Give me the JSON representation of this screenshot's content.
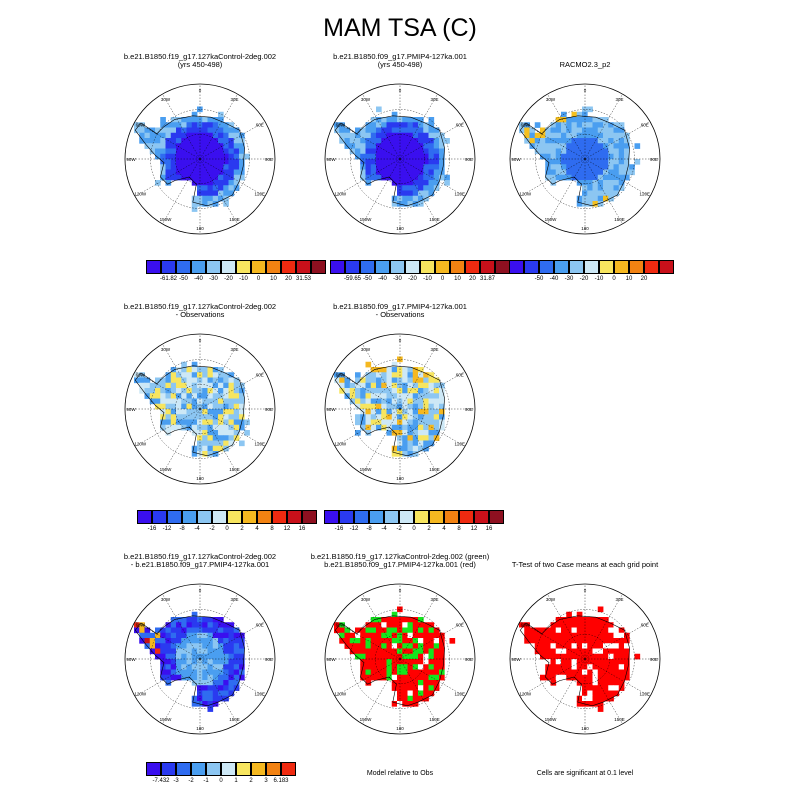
{
  "title": "MAM TSA (C)",
  "panels": [
    {
      "id": "p1",
      "title": [
        "b.e21.B1850.f19_g17.127kaControl-2deg.002",
        "(yrs 450-498)"
      ],
      "fill": "cold"
    },
    {
      "id": "p2",
      "title": [
        "b.e21.B1850.f09_g17.PMIP4-127ka.001",
        "(yrs 450-498)"
      ],
      "fill": "cold"
    },
    {
      "id": "p3",
      "title": [
        "RACMO2.3_p2"
      ],
      "fill": "cold_obs"
    },
    {
      "id": "p4",
      "title": [
        "b.e21.B1850.f19_g17.127kaControl-2deg.002",
        "- Observations"
      ],
      "fill": "bias"
    },
    {
      "id": "p5",
      "title": [
        "b.e21.B1850.f09_g17.PMIP4-127ka.001",
        "- Observations"
      ],
      "fill": "bias2"
    },
    {
      "id": "p6",
      "title": [
        "b.e21.B1850.f19_g17.127kaControl-2deg.002",
        "- b.e21.B1850.f09_g17.PMIP4-127ka.001"
      ],
      "fill": "diff"
    },
    {
      "id": "p7",
      "title": [
        "b.e21.B1850.f19_g17.127kaControl-2deg.002 (green)",
        "b.e21.B1850.f09_g17.PMIP4-127ka.001 (red)"
      ],
      "fill": "redgreen"
    },
    {
      "id": "p8",
      "title": [
        "T-Test of two Case means at each grid point"
      ],
      "fill": "redwhite"
    }
  ],
  "map_labels": {
    "top": "0",
    "left": "90W",
    "right": "90E",
    "bottom": "180",
    "tl": "30W",
    "tr": "30E",
    "ml": "60W",
    "mr": "60E",
    "ll": "120W",
    "lr": "120E",
    "bl": "150W",
    "br": "150E"
  },
  "colorbars": {
    "cb1": {
      "colors": [
        "#3a0fef",
        "#2a3af0",
        "#2f6cf0",
        "#4a9ef0",
        "#8cc6f2",
        "#cde8f6",
        "#f7e55f",
        "#f5b820",
        "#f28212",
        "#ef2a10",
        "#c8101a",
        "#8e1020"
      ],
      "labels": [
        "-61.82",
        "-50",
        "-40",
        "-30",
        "-20",
        "-10",
        "0",
        "10",
        "20",
        "31.53"
      ]
    },
    "cb2": {
      "colors": [
        "#3a0fef",
        "#2a3af0",
        "#2f6cf0",
        "#4a9ef0",
        "#8cc6f2",
        "#cde8f6",
        "#f7e55f",
        "#f5b820",
        "#f28212",
        "#ef2a10",
        "#c8101a",
        "#8e1020"
      ],
      "labels": [
        "-59.65",
        "-50",
        "-40",
        "-30",
        "-20",
        "-10",
        "0",
        "10",
        "20",
        "31.87"
      ]
    },
    "cb3": {
      "colors": [
        "#3a0fef",
        "#2a3af0",
        "#2f6cf0",
        "#4a9ef0",
        "#8cc6f2",
        "#cde8f6",
        "#f7e55f",
        "#f5b820",
        "#f28212",
        "#ef2a10",
        "#c8101a"
      ],
      "labels": [
        "-50",
        "-40",
        "-30",
        "-20",
        "-10",
        "0",
        "10",
        "20"
      ]
    },
    "cb4": {
      "colors": [
        "#3a0fef",
        "#2a3af0",
        "#2f6cf0",
        "#4a9ef0",
        "#8cc6f2",
        "#cde8f6",
        "#f7e55f",
        "#f5b820",
        "#f28212",
        "#ef2a10",
        "#c8101a",
        "#8e1020"
      ],
      "labels": [
        "-16",
        "-12",
        "-8",
        "-4",
        "-2",
        "0",
        "2",
        "4",
        "8",
        "12",
        "16"
      ]
    },
    "cb5": {
      "colors": [
        "#3a0fef",
        "#2a3af0",
        "#2f6cf0",
        "#4a9ef0",
        "#8cc6f2",
        "#cde8f6",
        "#f7e55f",
        "#f5b820",
        "#f28212",
        "#ef2a10",
        "#c8101a",
        "#8e1020"
      ],
      "labels": [
        "-16",
        "-12",
        "-8",
        "-4",
        "-2",
        "0",
        "2",
        "4",
        "8",
        "12",
        "16"
      ]
    },
    "cb6": {
      "colors": [
        "#3a0fef",
        "#2a3af0",
        "#2f6cf0",
        "#4a9ef0",
        "#8cc6f2",
        "#cde8f6",
        "#f7e55f",
        "#f5b820",
        "#f28212",
        "#ef2a10"
      ],
      "labels": [
        "-7.432",
        "-3",
        "-2",
        "-1",
        "0",
        "1",
        "2",
        "3",
        "6.183"
      ]
    }
  },
  "notes": {
    "model_rel": "Model relative to Obs",
    "cells_sig": "Cells are significant at 0.1 level"
  }
}
